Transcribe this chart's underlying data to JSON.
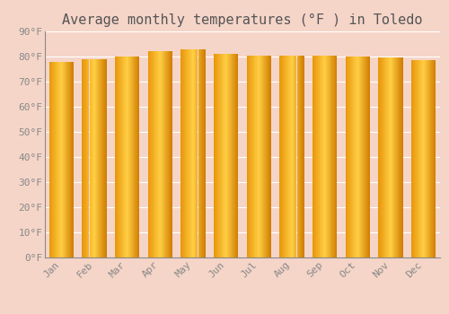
{
  "title": "Average monthly temperatures (°F ) in Toledo",
  "months": [
    "Jan",
    "Feb",
    "Mar",
    "Apr",
    "May",
    "Jun",
    "Jul",
    "Aug",
    "Sep",
    "Oct",
    "Nov",
    "Dec"
  ],
  "values": [
    78,
    79,
    80,
    82,
    83,
    81,
    80.5,
    80.5,
    80.5,
    80,
    79.5,
    78.5
  ],
  "ylim": [
    0,
    90
  ],
  "yticks": [
    0,
    10,
    20,
    30,
    40,
    50,
    60,
    70,
    80,
    90
  ],
  "ytick_labels": [
    "0°F",
    "10°F",
    "20°F",
    "30°F",
    "40°F",
    "50°F",
    "60°F",
    "70°F",
    "80°F",
    "90°F"
  ],
  "bar_color_left": "#E8960A",
  "bar_color_center": "#FFCE44",
  "bar_color_right": "#D07C00",
  "background_color": "#F5D5C8",
  "grid_color": "#FFFFFF",
  "title_fontsize": 11,
  "tick_fontsize": 8,
  "font_family": "monospace",
  "bar_width": 0.75,
  "num_strips": 50
}
